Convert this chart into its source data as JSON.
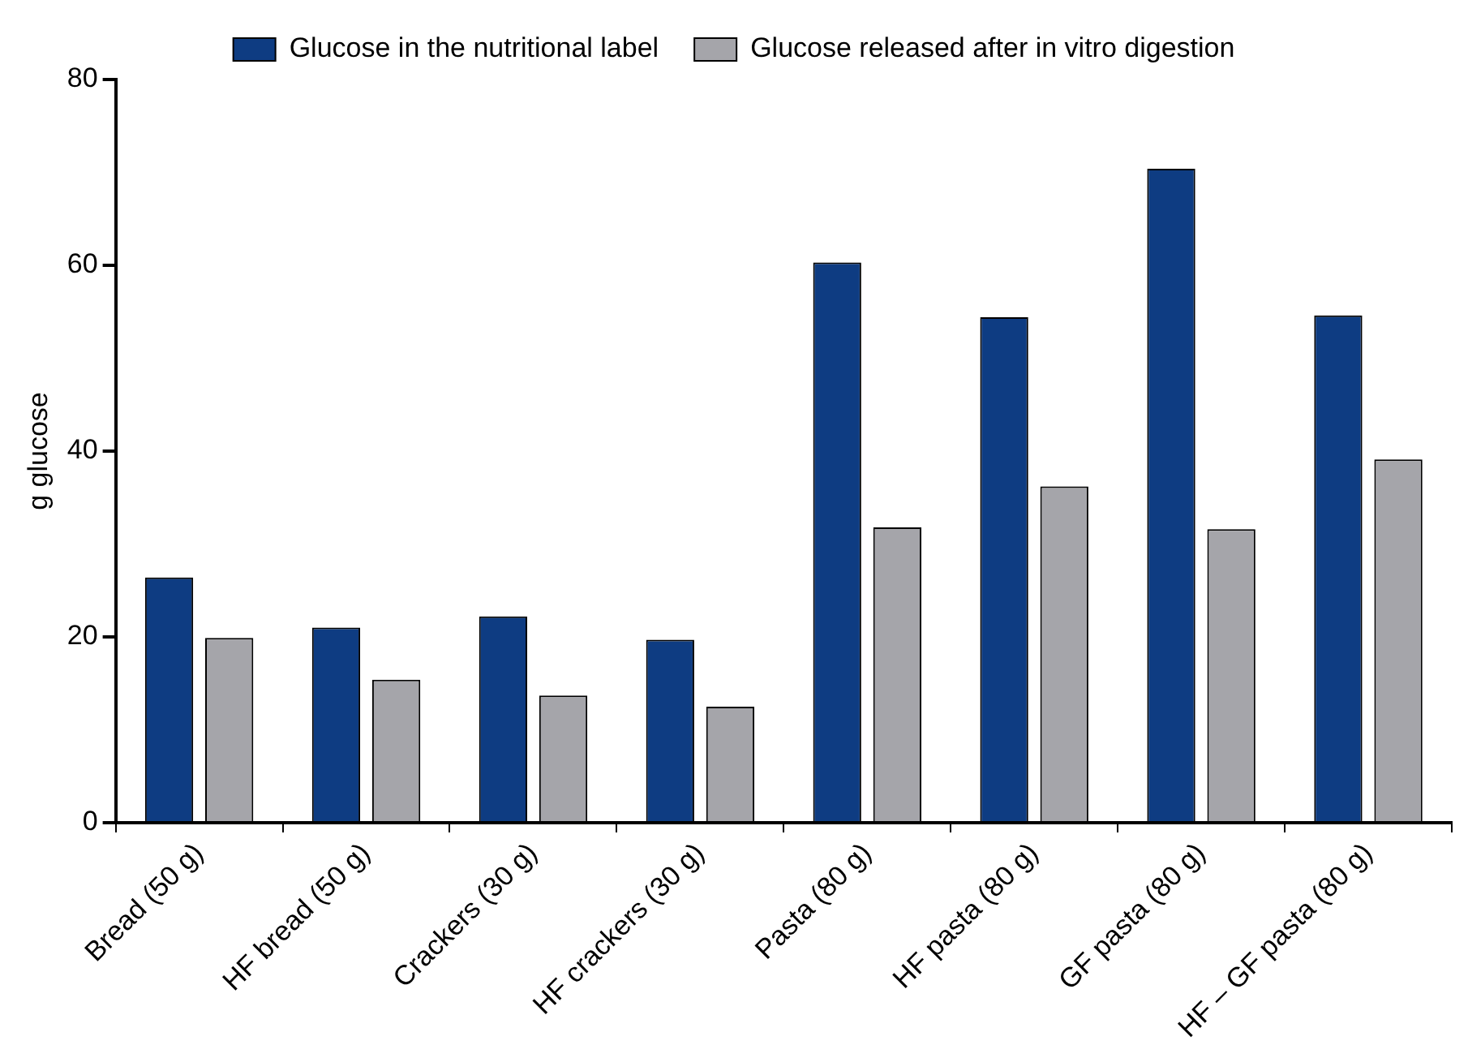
{
  "chart_data": {
    "type": "bar",
    "ylabel": "g glucose",
    "categories": [
      "Bread (50 g)",
      "HF bread (50 g)",
      "Crackers (30 g)",
      "HF crackers (30 g)",
      "Pasta (80 g)",
      "HF pasta (80 g)",
      "GF pasta (80 g)",
      "HF – GF pasta (80 g)"
    ],
    "series": [
      {
        "name": "Glucose in the nutritional label",
        "color": "#0e3c82",
        "values": [
          26.4,
          21.0,
          22.2,
          19.7,
          60.3,
          54.4,
          70.4,
          54.6
        ]
      },
      {
        "name": "Glucose released after in vitro digestion",
        "color": "#a5a5aa",
        "values": [
          19.9,
          15.4,
          13.7,
          12.5,
          31.8,
          36.2,
          31.6,
          39.1
        ]
      }
    ],
    "ylim": [
      0,
      80
    ],
    "yticks": [
      0,
      20,
      40,
      60,
      80
    ],
    "grid": false,
    "legend": "top"
  }
}
